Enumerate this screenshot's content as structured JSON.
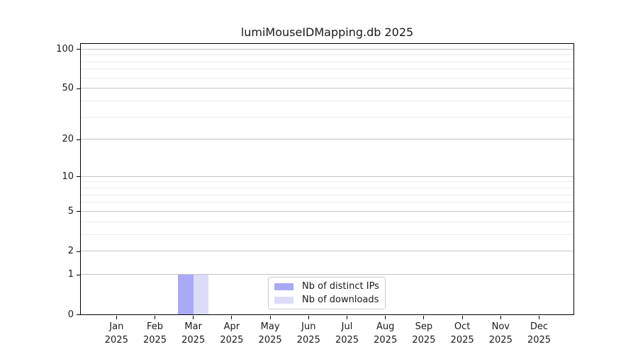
{
  "title": "lumiMouseIDMapping.db 2025",
  "colors": {
    "distinct_ips_bar": "#a9a9f6",
    "downloads_bar": "#dcdcf9",
    "grid_major": "#c3c3c3",
    "grid_minor": "#ececec",
    "axis": "#000000",
    "text": "#1a1a1a",
    "legend_border": "#cccccc"
  },
  "legend": {
    "items": [
      {
        "label": "Nb of distinct IPs",
        "color_key": "distinct_ips_bar"
      },
      {
        "label": "Nb of downloads",
        "color_key": "downloads_bar"
      }
    ]
  },
  "chart_data": {
    "type": "bar",
    "title": "lumiMouseIDMapping.db 2025",
    "categories": [
      "Jan",
      "Feb",
      "Mar",
      "Apr",
      "May",
      "Jun",
      "Jul",
      "Aug",
      "Sep",
      "Oct",
      "Nov",
      "Dec"
    ],
    "year_label": "2025",
    "series": [
      {
        "name": "Nb of distinct IPs",
        "values": [
          0,
          0,
          1,
          0,
          0,
          0,
          0,
          0,
          0,
          0,
          0,
          0
        ]
      },
      {
        "name": "Nb of downloads",
        "values": [
          0,
          0,
          1,
          0,
          0,
          0,
          0,
          0,
          0,
          0,
          0,
          0
        ]
      }
    ],
    "xlabel": "",
    "ylabel": "",
    "y_scale": "log1p",
    "y_axis_ticks": [
      0,
      1,
      2,
      5,
      10,
      20,
      50,
      100
    ],
    "y_minor_gridlines": [
      3,
      4,
      6,
      7,
      8,
      9,
      30,
      40,
      60,
      70,
      80,
      90
    ],
    "ylim": [
      0,
      110.7
    ],
    "grid": true,
    "legend_position": "lower center"
  }
}
